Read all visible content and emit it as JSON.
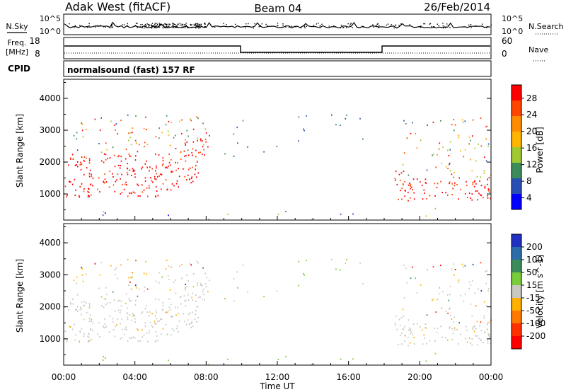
{
  "header": {
    "station": "Adak West (fitACF)",
    "beam": "Beam 04",
    "date": "26/Feb/2014"
  },
  "noise_panel": {
    "left_label": "N.Sky",
    "right_label": "N.Search",
    "ticks_left": [
      "10^5",
      "10^0"
    ],
    "ticks_right": [
      "10^5",
      "10^0"
    ]
  },
  "freq_panel": {
    "left_label_1": "Freq.",
    "left_label_2": "[MHz]",
    "ticks_left": [
      "18",
      "8"
    ],
    "right_label": "Nave",
    "ticks_right": [
      "60",
      "0"
    ]
  },
  "cpid": {
    "label": "CPID",
    "text": "normalsound (fast) 157 RF"
  },
  "chart_data": [
    {
      "type": "heatmap",
      "name": "power",
      "ylabel": "Slant Range [km]",
      "yticks": [
        "1000",
        "2000",
        "3000",
        "4000"
      ],
      "ylim": [
        180,
        4600
      ],
      "xlim_hours": [
        0,
        24
      ],
      "colorbar_label": "Power [dB]",
      "colorbar_ticks": [
        "28",
        "24",
        "20",
        "16",
        "12",
        "8",
        "4"
      ],
      "colorbar_colors": [
        "#ff0000",
        "#ff4500",
        "#ff8c00",
        "#ffb400",
        "#a0c832",
        "#3c8c5a",
        "#2850b4",
        "#0000ff"
      ],
      "echo_regions": [
        {
          "from_hour": 0,
          "to_hour": 7.7,
          "range_km": [
            900,
            1550
          ],
          "level": "strong"
        },
        {
          "from_hour": 0,
          "to_hour": 8.2,
          "range_km": [
            1550,
            2300
          ],
          "level": "strong"
        },
        {
          "from_hour": 0,
          "to_hour": 8.0,
          "range_km": [
            2300,
            3500
          ],
          "level": "scattered"
        },
        {
          "from_hour": 9.0,
          "to_hour": 18.0,
          "range_km": [
            2200,
            3500
          ],
          "level": "weak"
        },
        {
          "from_hour": 18.5,
          "to_hour": 19.2,
          "range_km": [
            800,
            1800
          ],
          "level": "strong"
        },
        {
          "from_hour": 19.0,
          "to_hour": 24,
          "range_km": [
            800,
            1500
          ],
          "level": "strong"
        },
        {
          "from_hour": 19.0,
          "to_hour": 24,
          "range_km": [
            1500,
            3400
          ],
          "level": "scattered"
        },
        {
          "from_hour": 0,
          "to_hour": 24,
          "range_km": [
            180,
            600
          ],
          "level": "ground"
        }
      ]
    },
    {
      "type": "heatmap",
      "name": "velocity",
      "ylabel": "Slant Range [km]",
      "yticks": [
        "1000",
        "2000",
        "3000",
        "4000"
      ],
      "ylim": [
        180,
        4600
      ],
      "xlim_hours": [
        0,
        24
      ],
      "xlabel": "Time UT",
      "xticks": [
        "00:00",
        "04:00",
        "08:00",
        "12:00",
        "16:00",
        "20:00",
        "00:00"
      ],
      "colorbar_label": "Velocity [m s^-1]",
      "colorbar_ticks": [
        "200",
        "100",
        "50",
        "15",
        "-15",
        "-50",
        "-100",
        "-200"
      ],
      "colorbar_colors": [
        "#2030c0",
        "#2c6ca8",
        "#3c8c5a",
        "#7acc3a",
        "#c8c8c0",
        "#ffb000",
        "#ff7800",
        "#ff3000",
        "#ff0000"
      ],
      "ground_scatter_color": "#c8c8c0"
    }
  ]
}
